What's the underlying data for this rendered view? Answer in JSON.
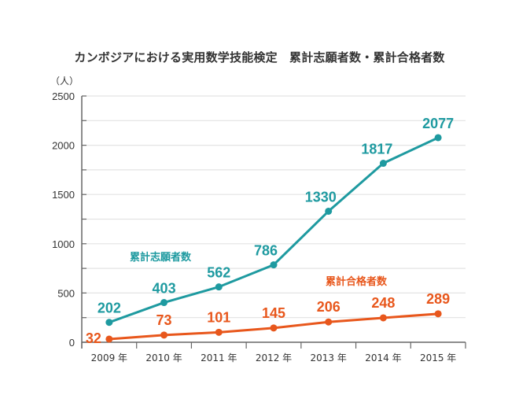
{
  "chart_data": {
    "type": "line",
    "title": "カンボジアにおける実用数学技能検定　累計志願者数・累計合格者数",
    "ylabel": "（人）",
    "xlabel": "",
    "categories": [
      "2009 年",
      "2010 年",
      "2011 年",
      "2012 年",
      "2013 年",
      "2014 年",
      "2015 年"
    ],
    "ylim": [
      0,
      2500
    ],
    "yticks": [
      0,
      500,
      1000,
      1500,
      2000,
      2500
    ],
    "yminor_step": 250,
    "grid": true,
    "legend": "inline labels",
    "series": [
      {
        "name": "累計志願者数",
        "color": "#1e9aa0",
        "values": [
          202,
          403,
          562,
          786,
          1330,
          1817,
          2077
        ]
      },
      {
        "name": "累計合格者数",
        "color": "#e8571c",
        "values": [
          32,
          73,
          101,
          145,
          206,
          248,
          289
        ]
      }
    ]
  }
}
